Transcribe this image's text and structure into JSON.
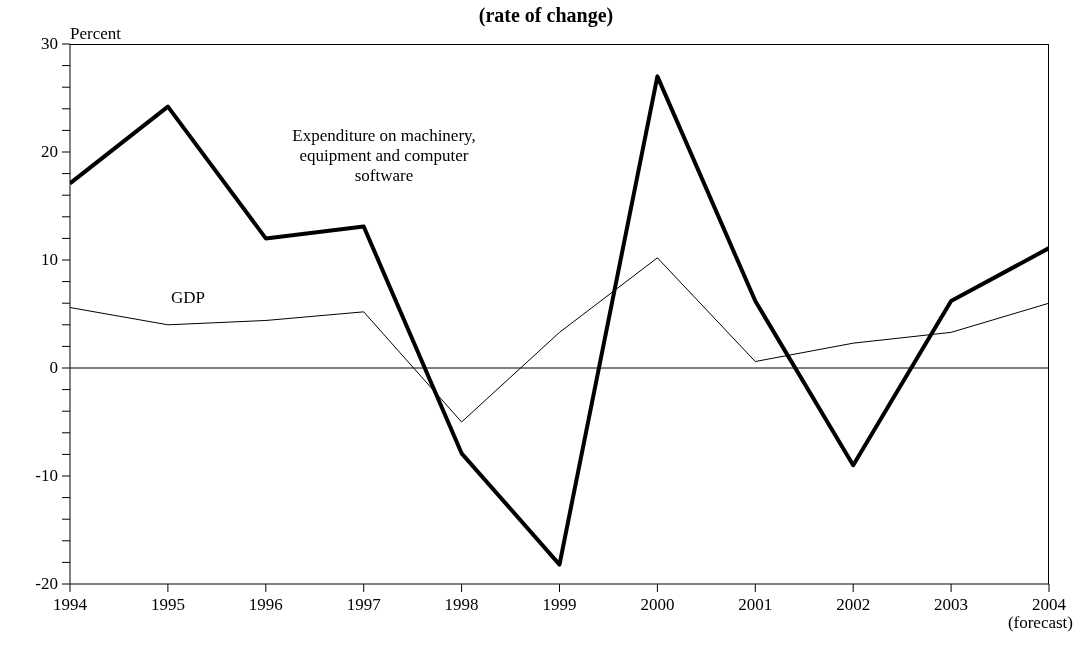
{
  "chart_data": {
    "type": "line",
    "title": "(rate of change)",
    "ylabel": "Percent",
    "x": [
      1994,
      1995,
      1996,
      1997,
      1998,
      1999,
      2000,
      2001,
      2002,
      2003,
      2004
    ],
    "xlim": [
      1994,
      2004
    ],
    "xticks": [
      1994,
      1995,
      1996,
      1997,
      1998,
      1999,
      2000,
      2001,
      2002,
      2003,
      {
        "value": 2004,
        "label": "2004\n(forecast)"
      }
    ],
    "ylim": [
      -20,
      30
    ],
    "yticks": [
      -20,
      {
        "value": -18,
        "label": null
      },
      {
        "value": -16,
        "label": null
      },
      {
        "value": -14,
        "label": null
      },
      {
        "value": -12,
        "label": null
      },
      -10,
      {
        "value": -8,
        "label": null
      },
      {
        "value": -6,
        "label": null
      },
      {
        "value": -4,
        "label": null
      },
      {
        "value": -2,
        "label": null
      },
      0,
      {
        "value": 2,
        "label": null
      },
      {
        "value": 4,
        "label": null
      },
      {
        "value": 6,
        "label": null
      },
      {
        "value": 8,
        "label": null
      },
      10,
      {
        "value": 12,
        "label": null
      },
      {
        "value": 14,
        "label": null
      },
      {
        "value": 16,
        "label": null
      },
      {
        "value": 18,
        "label": null
      },
      20,
      {
        "value": 22,
        "label": null
      },
      {
        "value": 24,
        "label": null
      },
      {
        "value": 26,
        "label": null
      },
      {
        "value": 28,
        "label": null
      },
      30
    ],
    "ref_lines": [
      {
        "axis": "y",
        "value": 0,
        "color": "#000000"
      }
    ],
    "series": [
      {
        "name": "Expenditure on machinery, equipment and computer software",
        "color": "#000000",
        "values": [
          17.1,
          24.2,
          12.0,
          13.1,
          -7.9,
          -18.2,
          27.0,
          6.2,
          -9.0,
          6.2,
          11.1
        ]
      },
      {
        "name": "GDP",
        "color": "#000000",
        "values": [
          5.6,
          4.0,
          4.4,
          5.2,
          -5.0,
          3.3,
          10.2,
          0.6,
          2.3,
          3.3,
          6.0
        ]
      }
    ]
  }
}
